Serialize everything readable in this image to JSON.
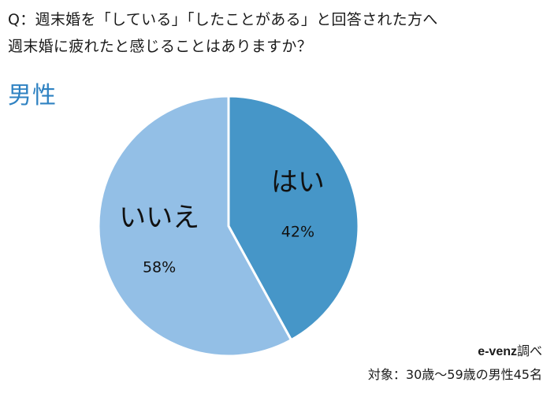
{
  "question": {
    "line1": "Q：週末婚を「している」「したことがある」と回答された方へ",
    "line2": "週末婚に疲れたと感じることはありますか？"
  },
  "group_label": "男性",
  "source": {
    "brand": "e-venz",
    "suffix": "調べ"
  },
  "sample": "対象：30歳～59歳の男性45名",
  "colors": {
    "yes": "#4696c8",
    "no": "#93bfe6",
    "accent": "#2f82c2"
  },
  "chart_data": {
    "type": "pie",
    "title": "",
    "slices": [
      {
        "label": "はい",
        "value": 42,
        "value_label": "42%",
        "color": "#4696c8"
      },
      {
        "label": "いいえ",
        "value": 58,
        "value_label": "58%",
        "color": "#93bfe6"
      }
    ]
  }
}
